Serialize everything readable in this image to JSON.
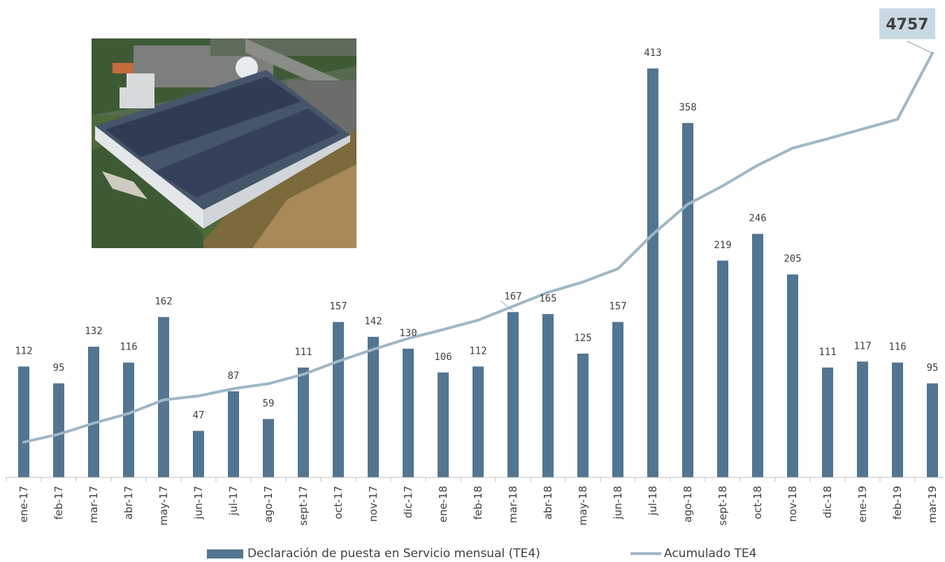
{
  "chart_data": {
    "type": "bar",
    "categories": [
      "ene-17",
      "feb-17",
      "mar-17",
      "abr-17",
      "may-17",
      "jun-17",
      "jul-17",
      "ago-17",
      "sept-17",
      "oct-17",
      "nov-17",
      "dic-17",
      "ene-18",
      "feb-18",
      "mar-18",
      "abr-18",
      "may-18",
      "jun-18",
      "jul-18",
      "ago-18",
      "sept-18",
      "oct-18",
      "nov-18",
      "dic-18",
      "ene-19",
      "feb-19",
      "mar-19"
    ],
    "series": [
      {
        "name": "Declaración de puesta en Servicio mensual (TE4)",
        "type": "bar",
        "values": [
          112,
          95,
          132,
          116,
          162,
          47,
          87,
          59,
          111,
          157,
          142,
          130,
          106,
          112,
          167,
          165,
          125,
          157,
          413,
          358,
          219,
          246,
          205,
          111,
          117,
          116,
          95
        ],
        "color": "#527591"
      },
      {
        "name": "Acumulado TE4",
        "type": "line",
        "values": [
          112,
          207,
          339,
          455,
          617,
          664,
          751,
          810,
          921,
          1078,
          1220,
          1350,
          1456,
          1568,
          1735,
          1900,
          2025,
          2182,
          2595,
          2953,
          3172,
          3418,
          3623,
          3734,
          3851,
          3967,
          4062
        ],
        "color": "#9fb7c6"
      }
    ],
    "callout": "4757",
    "legend_position": "bottom",
    "grid": false
  },
  "photo": {
    "icon": "aerial-factory-photo"
  }
}
